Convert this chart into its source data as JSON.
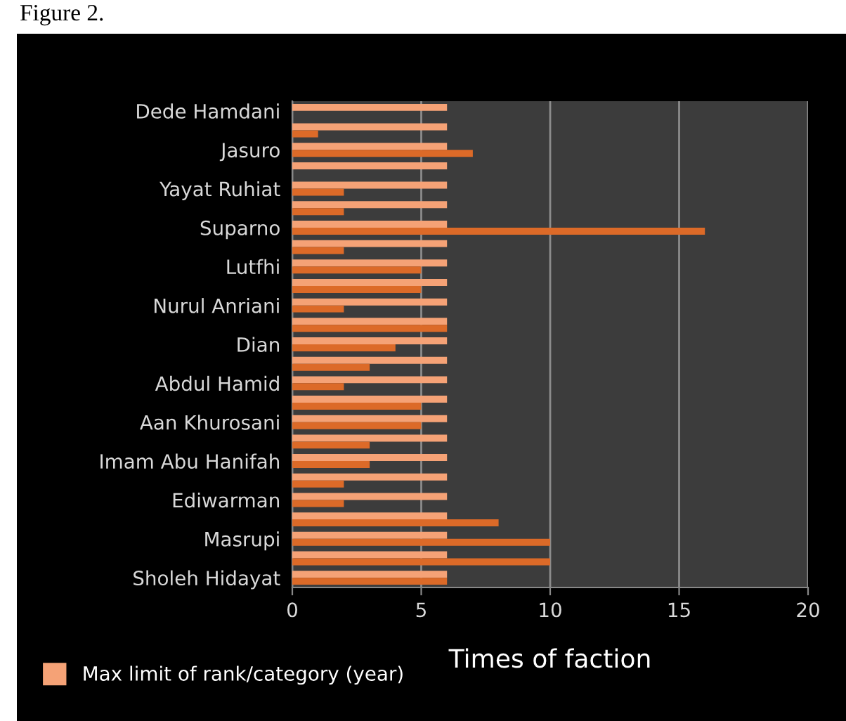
{
  "chart_data": {
    "type": "bar",
    "orientation": "horizontal",
    "xlabel": "Times of faction",
    "categories": [
      "Dede Hamdani",
      null,
      "Jasuro",
      null,
      "Yayat Ruhiat",
      null,
      "Suparno",
      null,
      "Lutfhi",
      null,
      "Nurul Anriani",
      null,
      "Dian",
      null,
      "Abdul Hamid",
      null,
      "Aan Khurosani",
      null,
      "Imam Abu Hanifah",
      null,
      "Ediwarman",
      null,
      "Masrupi",
      null,
      "Sholeh Hidayat"
    ],
    "series": [
      {
        "name": "Max limit of rank/category (year)",
        "color": "#f5a276",
        "values": [
          6,
          6,
          6,
          6,
          6,
          6,
          6,
          6,
          6,
          6,
          6,
          6,
          6,
          6,
          6,
          6,
          6,
          6,
          6,
          6,
          6,
          6,
          6,
          6,
          6
        ]
      },
      {
        "color": "#dc6a28",
        "values": [
          0,
          1,
          7,
          0,
          2,
          2,
          16,
          2,
          5,
          5,
          2,
          6,
          4,
          3,
          2,
          5,
          5,
          3,
          3,
          2,
          2,
          8,
          10,
          10,
          6
        ]
      }
    ],
    "xlim": [
      0,
      20
    ],
    "xticks": [
      0,
      5,
      10,
      15,
      20
    ],
    "grid": "x",
    "legend": "bottom left",
    "annotations": [
      "Figure 2."
    ]
  }
}
